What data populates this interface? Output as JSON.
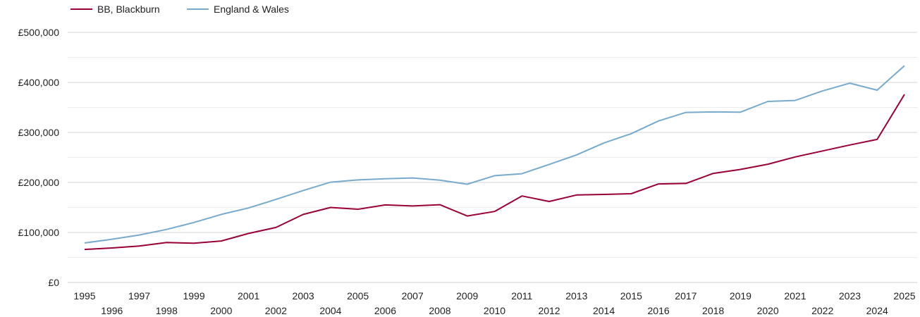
{
  "chart_data": {
    "type": "line",
    "x": [
      1995,
      1996,
      1997,
      1998,
      1999,
      2000,
      2001,
      2002,
      2003,
      2004,
      2005,
      2006,
      2007,
      2008,
      2009,
      2010,
      2011,
      2012,
      2013,
      2014,
      2015,
      2016,
      2017,
      2018,
      2019,
      2020,
      2021,
      2022,
      2023,
      2024,
      2025
    ],
    "x_tick_labels": [
      "1995",
      "1996",
      "1997",
      "1998",
      "1999",
      "2000",
      "2001",
      "2002",
      "2003",
      "2004",
      "2005",
      "2006",
      "2007",
      "2008",
      "2009",
      "2010",
      "2011",
      "2012",
      "2013",
      "2014",
      "2015",
      "2016",
      "2017",
      "2018",
      "2019",
      "2020",
      "2021",
      "2022",
      "2023",
      "2024",
      "2025"
    ],
    "y_tick_labels": [
      "£0",
      "£100,000",
      "£200,000",
      "£300,000",
      "£400,000",
      "£500,000"
    ],
    "y_ticks": [
      0,
      100000,
      200000,
      300000,
      400000,
      500000
    ],
    "ylim": [
      0,
      500000
    ],
    "grid": true,
    "legend_position": "top-left",
    "series": [
      {
        "name": "BB, Blackburn",
        "color": "#990033",
        "values": [
          66000,
          69000,
          73000,
          80000,
          78500,
          83000,
          98000,
          110000,
          136000,
          150000,
          146500,
          155000,
          153000,
          155500,
          133000,
          142000,
          173000,
          162000,
          175000,
          176000,
          177500,
          197000,
          198000,
          218000,
          226000,
          236500,
          251000,
          263000,
          275000,
          286000,
          376000
        ]
      },
      {
        "name": "England & Wales",
        "color": "#77aacc",
        "values": [
          79000,
          86500,
          95000,
          106000,
          120000,
          136000,
          149000,
          166000,
          184000,
          200500,
          205000,
          207500,
          209000,
          204500,
          196500,
          213500,
          217500,
          236000,
          255000,
          279000,
          297500,
          323000,
          340000,
          341000,
          340500,
          362000,
          364000,
          383000,
          398500,
          384500,
          433500
        ]
      }
    ]
  }
}
